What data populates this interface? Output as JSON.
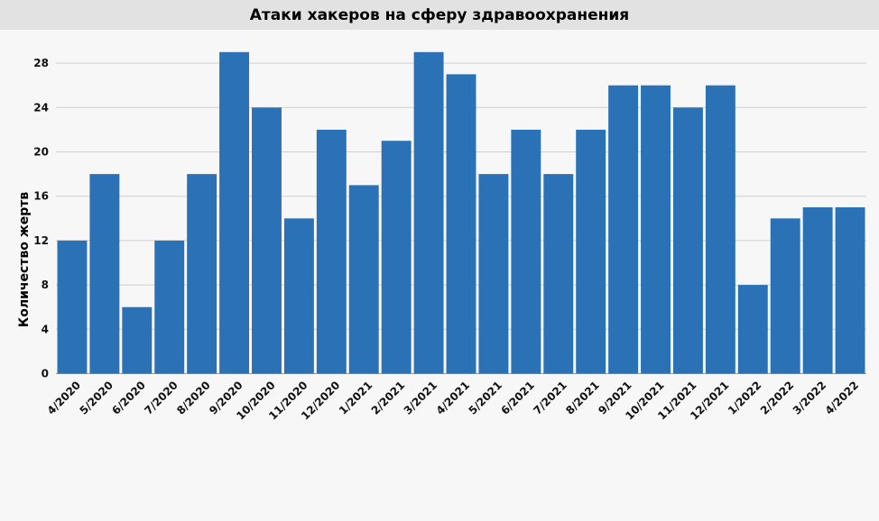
{
  "chart_data": {
    "type": "bar",
    "title": "Атаки хакеров на сферу здравоохранения",
    "xlabel": "",
    "ylabel": "Количество жертв",
    "ylim": [
      0,
      30
    ],
    "yticks": [
      0,
      4,
      8,
      12,
      16,
      20,
      24,
      28
    ],
    "grid": true,
    "bar_color": "#2a72b5",
    "categories": [
      "4/2020",
      "5/2020",
      "6/2020",
      "7/2020",
      "8/2020",
      "9/2020",
      "10/2020",
      "11/2020",
      "12/2020",
      "1/2021",
      "2/2021",
      "3/2021",
      "4/2021",
      "5/2021",
      "6/2021",
      "7/2021",
      "8/2021",
      "9/2021",
      "10/2021",
      "11/2021",
      "12/2021",
      "1/2022",
      "2/2022",
      "3/2022",
      "4/2022"
    ],
    "values": [
      12,
      18,
      6,
      12,
      18,
      29,
      24,
      14,
      22,
      17,
      21,
      29,
      27,
      18,
      22,
      18,
      22,
      26,
      26,
      24,
      26,
      8,
      14,
      15,
      15
    ]
  }
}
